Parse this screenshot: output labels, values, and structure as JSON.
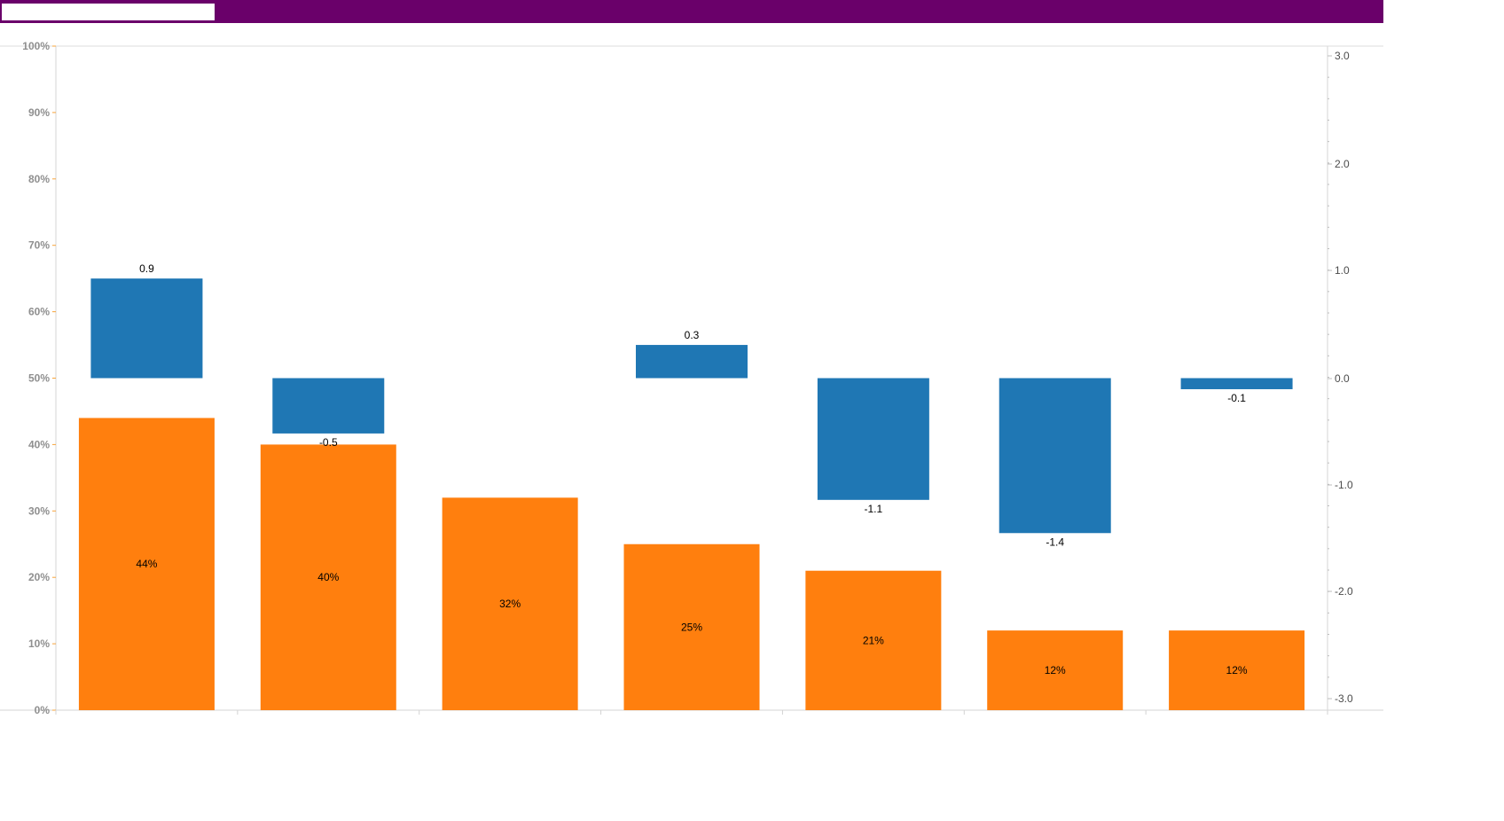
{
  "chart_data": {
    "type": "bar",
    "categories": [
      "",
      "",
      "",
      "",
      "",
      "",
      ""
    ],
    "left_axis": {
      "ticks": [
        "0%",
        "10%",
        "20%",
        "30%",
        "40%",
        "50%",
        "60%",
        "70%",
        "80%",
        "90%",
        "100%"
      ],
      "ylim": [
        0,
        100
      ]
    },
    "right_axis": {
      "ticks": [
        "3.0",
        "2.0",
        "1.0",
        "0.0",
        "-1.0",
        "-2.0",
        "-3.0"
      ],
      "ylim": [
        -3,
        3
      ]
    },
    "series": [
      {
        "values": [
          44,
          40,
          32,
          25,
          21,
          12,
          12
        ],
        "labels": [
          "44%",
          "40%",
          "",
          "25%",
          "21%",
          "12%",
          "12%"
        ],
        "axis": "left",
        "color": "#ff7f0e"
      },
      {
        "values": [
          0.9,
          -0.5,
          0,
          0.3,
          -1.1,
          -1.4,
          -0.1
        ],
        "labels": [
          "0.9",
          "-0.5",
          "",
          "0.3",
          "-1.1",
          "-1.4",
          "-0.1"
        ],
        "axis": "right",
        "color": "#1f77b4"
      }
    ],
    "extra_labels": [
      "32%"
    ],
    "grid": false
  },
  "header": {
    "bar_color": "#6a006a",
    "search_value": ""
  }
}
